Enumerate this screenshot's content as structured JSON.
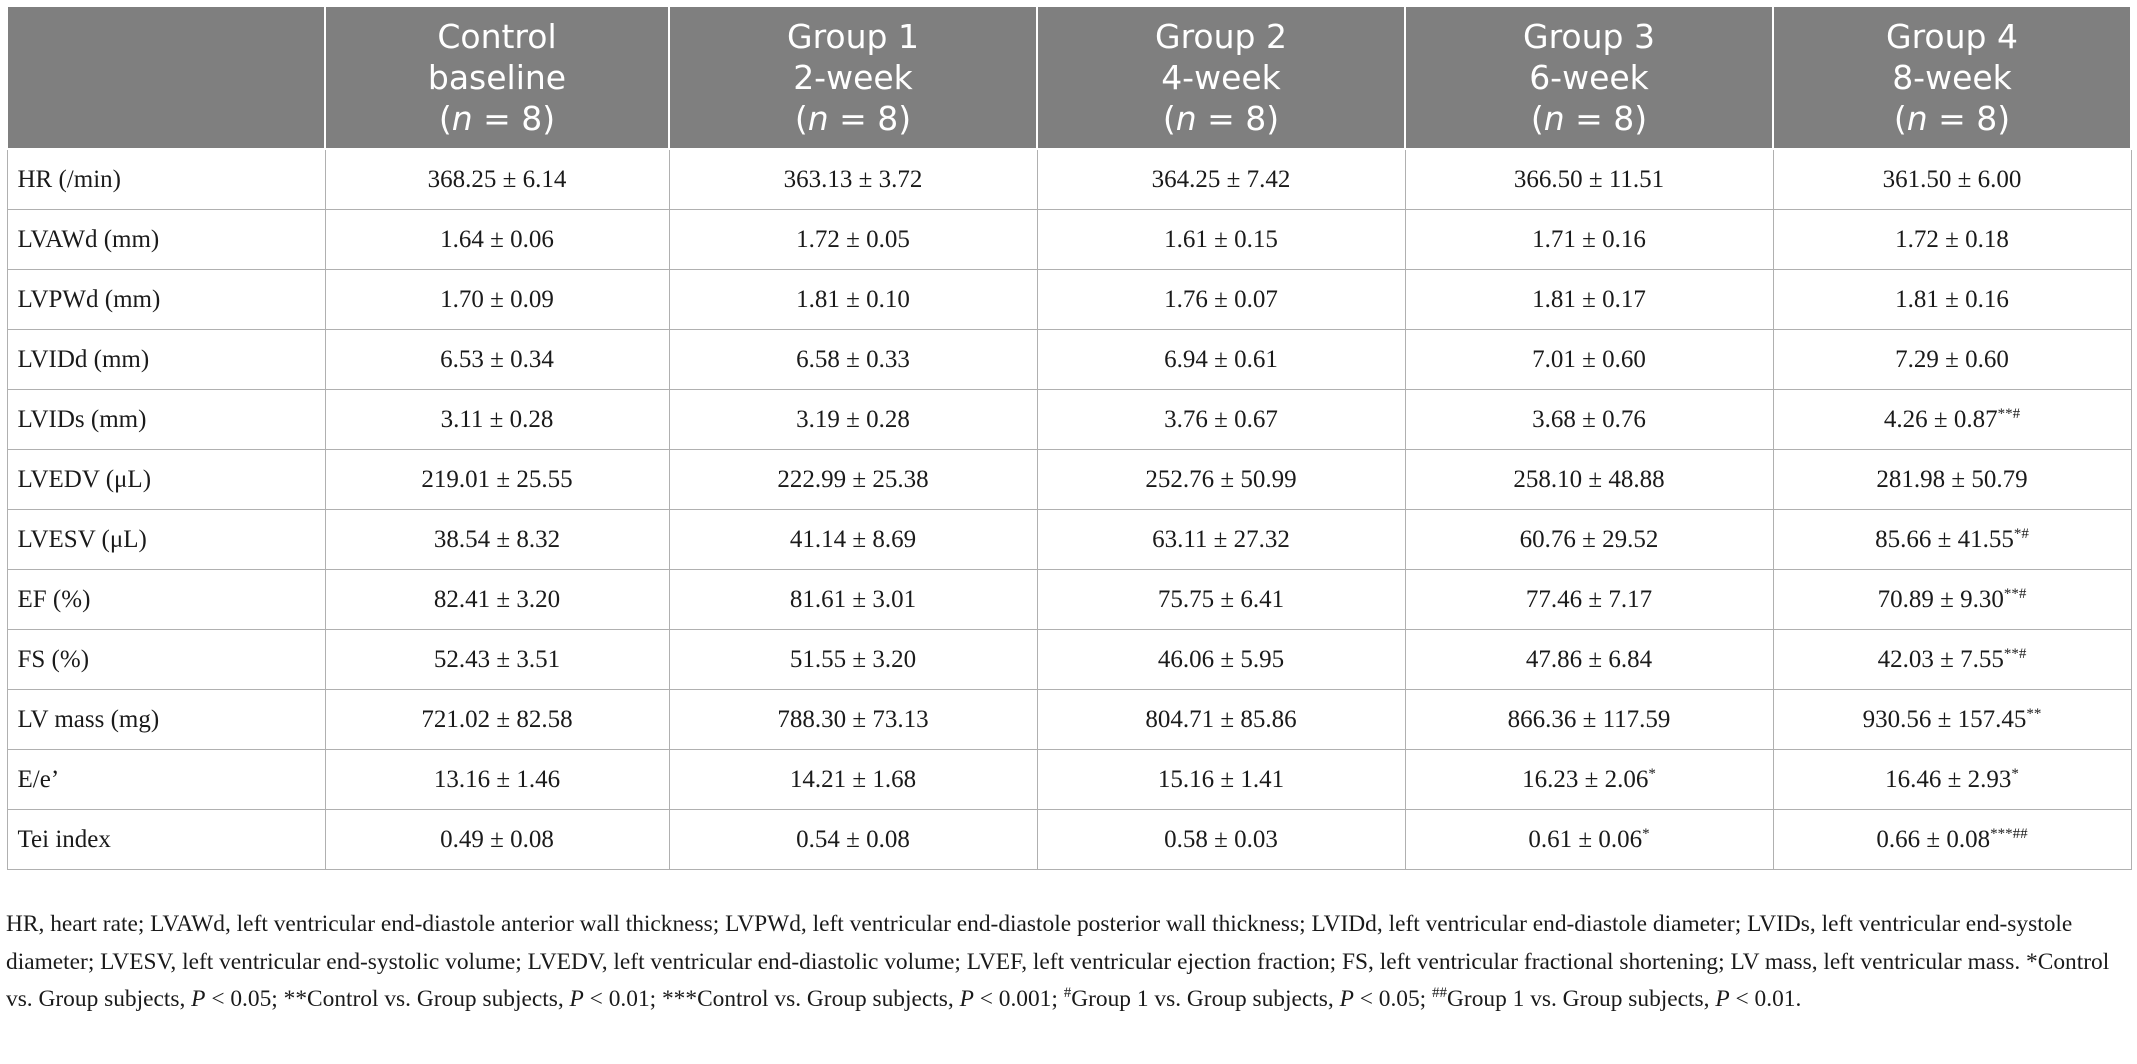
{
  "table": {
    "columns": [
      {
        "line1": "",
        "line2": "",
        "n_var": "",
        "n_rest": ""
      },
      {
        "line1": "Control",
        "line2": "baseline",
        "n_var": "n",
        "n_rest": " = 8)"
      },
      {
        "line1": "Group 1",
        "line2": "2-week",
        "n_var": "n",
        "n_rest": " = 8)"
      },
      {
        "line1": "Group 2",
        "line2": "4-week",
        "n_var": "n",
        "n_rest": " = 8)"
      },
      {
        "line1": "Group 3",
        "line2": "6-week",
        "n_var": "n",
        "n_rest": " = 8)"
      },
      {
        "line1": "Group 4",
        "line2": "8-week",
        "n_var": "n",
        "n_rest": " = 8)"
      }
    ],
    "rows": [
      {
        "label": "HR (/min)",
        "cells": [
          {
            "v": "368.25 ± 6.14",
            "sup": ""
          },
          {
            "v": "363.13 ± 3.72",
            "sup": ""
          },
          {
            "v": "364.25 ± 7.42",
            "sup": ""
          },
          {
            "v": "366.50 ± 11.51",
            "sup": ""
          },
          {
            "v": "361.50 ± 6.00",
            "sup": ""
          }
        ]
      },
      {
        "label": "LVAWd (mm)",
        "cells": [
          {
            "v": "1.64 ± 0.06",
            "sup": ""
          },
          {
            "v": "1.72 ± 0.05",
            "sup": ""
          },
          {
            "v": "1.61 ± 0.15",
            "sup": ""
          },
          {
            "v": "1.71 ± 0.16",
            "sup": ""
          },
          {
            "v": "1.72 ± 0.18",
            "sup": ""
          }
        ]
      },
      {
        "label": "LVPWd (mm)",
        "cells": [
          {
            "v": "1.70 ± 0.09",
            "sup": ""
          },
          {
            "v": "1.81 ± 0.10",
            "sup": ""
          },
          {
            "v": "1.76 ± 0.07",
            "sup": ""
          },
          {
            "v": "1.81 ± 0.17",
            "sup": ""
          },
          {
            "v": "1.81 ± 0.16",
            "sup": ""
          }
        ]
      },
      {
        "label": "LVIDd (mm)",
        "cells": [
          {
            "v": "6.53 ± 0.34",
            "sup": ""
          },
          {
            "v": "6.58 ± 0.33",
            "sup": ""
          },
          {
            "v": "6.94 ± 0.61",
            "sup": ""
          },
          {
            "v": "7.01 ± 0.60",
            "sup": ""
          },
          {
            "v": "7.29 ± 0.60",
            "sup": ""
          }
        ]
      },
      {
        "label": "LVIDs (mm)",
        "cells": [
          {
            "v": "3.11 ± 0.28",
            "sup": ""
          },
          {
            "v": "3.19 ± 0.28",
            "sup": ""
          },
          {
            "v": "3.76 ± 0.67",
            "sup": ""
          },
          {
            "v": "3.68 ± 0.76",
            "sup": ""
          },
          {
            "v": "4.26 ± 0.87",
            "sup": "**#"
          }
        ]
      },
      {
        "label": "LVEDV (μL)",
        "cells": [
          {
            "v": "219.01 ± 25.55",
            "sup": ""
          },
          {
            "v": "222.99 ± 25.38",
            "sup": ""
          },
          {
            "v": "252.76 ± 50.99",
            "sup": ""
          },
          {
            "v": "258.10 ± 48.88",
            "sup": ""
          },
          {
            "v": "281.98 ± 50.79",
            "sup": ""
          }
        ]
      },
      {
        "label": "LVESV (μL)",
        "cells": [
          {
            "v": "38.54 ± 8.32",
            "sup": ""
          },
          {
            "v": "41.14 ± 8.69",
            "sup": ""
          },
          {
            "v": "63.11 ± 27.32",
            "sup": ""
          },
          {
            "v": "60.76 ± 29.52",
            "sup": ""
          },
          {
            "v": "85.66 ± 41.55",
            "sup": "*#"
          }
        ]
      },
      {
        "label": "EF (%)",
        "cells": [
          {
            "v": "82.41 ± 3.20",
            "sup": ""
          },
          {
            "v": "81.61 ± 3.01",
            "sup": ""
          },
          {
            "v": "75.75 ± 6.41",
            "sup": ""
          },
          {
            "v": "77.46 ± 7.17",
            "sup": ""
          },
          {
            "v": "70.89 ± 9.30",
            "sup": "**#"
          }
        ]
      },
      {
        "label": "FS (%)",
        "cells": [
          {
            "v": "52.43 ± 3.51",
            "sup": ""
          },
          {
            "v": "51.55 ± 3.20",
            "sup": ""
          },
          {
            "v": "46.06 ± 5.95",
            "sup": ""
          },
          {
            "v": "47.86 ± 6.84",
            "sup": ""
          },
          {
            "v": "42.03 ± 7.55",
            "sup": "**#"
          }
        ]
      },
      {
        "label": "LV mass (mg)",
        "cells": [
          {
            "v": "721.02 ± 82.58",
            "sup": ""
          },
          {
            "v": "788.30 ± 73.13",
            "sup": ""
          },
          {
            "v": "804.71 ± 85.86",
            "sup": ""
          },
          {
            "v": "866.36 ± 117.59",
            "sup": ""
          },
          {
            "v": "930.56 ± 157.45",
            "sup": "**"
          }
        ]
      },
      {
        "label": "E/e’",
        "cells": [
          {
            "v": "13.16 ± 1.46",
            "sup": ""
          },
          {
            "v": "14.21 ± 1.68",
            "sup": ""
          },
          {
            "v": "15.16 ± 1.41",
            "sup": ""
          },
          {
            "v": "16.23 ± 2.06",
            "sup": "*"
          },
          {
            "v": "16.46 ± 2.93",
            "sup": "*"
          }
        ]
      },
      {
        "label": "Tei index",
        "cells": [
          {
            "v": "0.49 ± 0.08",
            "sup": ""
          },
          {
            "v": "0.54 ± 0.08",
            "sup": ""
          },
          {
            "v": "0.58 ± 0.03",
            "sup": ""
          },
          {
            "v": "0.61 ± 0.06",
            "sup": "*"
          },
          {
            "v": "0.66 ± 0.08",
            "sup": "***##"
          }
        ]
      }
    ]
  },
  "footnote": {
    "abbreviations": "HR, heart rate; LVAWd, left ventricular end-diastole anterior wall thickness; LVPWd, left ventricular end-diastole posterior wall thickness; LVIDd, left ventricular end-diastole diameter; LVIDs, left ventricular end-systole diameter; LVESV, left ventricular end-systolic volume; LVEDV, left ventricular end-diastolic volume; LVEF, left ventricular ejection fraction; FS, left ventricular fractional shortening; LV mass, left ventricular mass. ",
    "s1": "*Control vs. Group subjects, ",
    "s2": " < 0.05; ",
    "s3": "**Control vs. Group subjects, ",
    "s4": " < 0.01; ",
    "s5": "***Control vs. Group subjects, ",
    "s6": " < 0.001; ",
    "s7_sup": "#",
    "s7": "Group 1 vs. Group subjects, ",
    "s8": " < 0.05; ",
    "s9_sup": "##",
    "s9": "Group 1 vs. Group subjects, ",
    "s10": " < 0.01.",
    "p": "P"
  }
}
